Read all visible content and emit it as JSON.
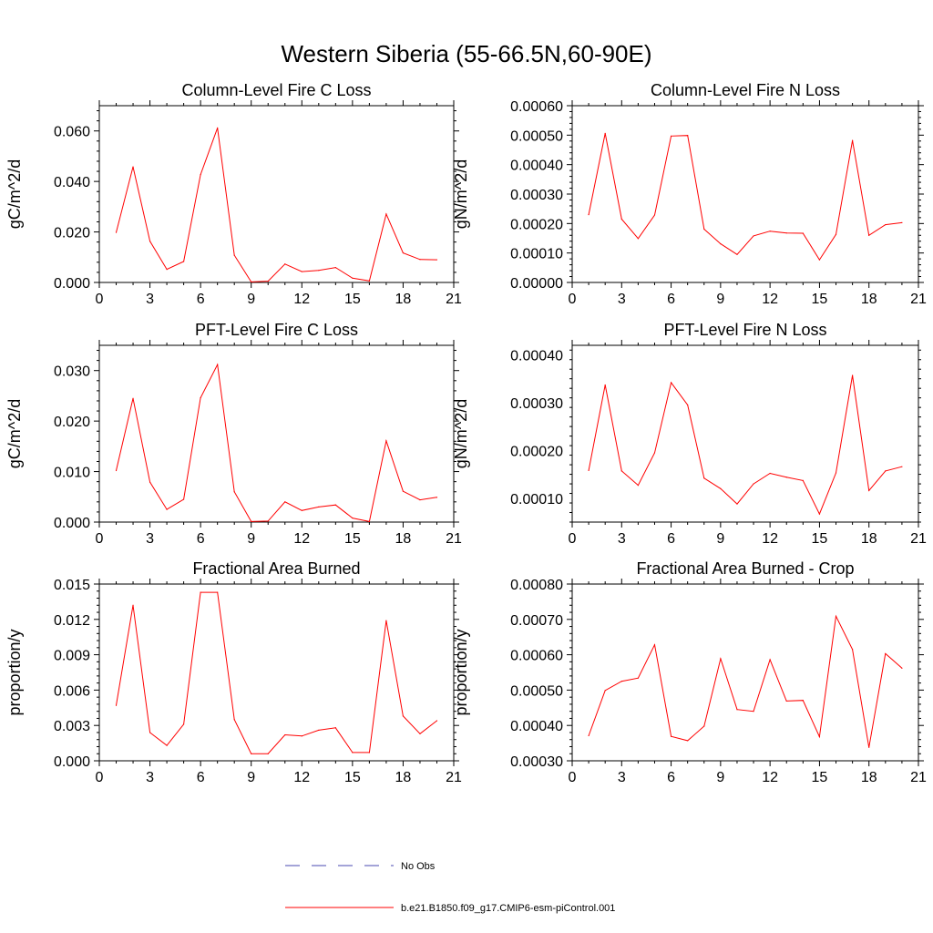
{
  "figure": {
    "title": "Western Siberia (55-66.5N,60-90E)",
    "colors": {
      "model": "#ff0000",
      "obs": "#4a4ab0",
      "axis": "#000000"
    },
    "legend": [
      {
        "label": "No Obs",
        "style": "dashed",
        "color": "#4a4ab0"
      },
      {
        "label": "b.e21.B1850.f09_g17.CMIP6-esm-piControl.001",
        "style": "solid",
        "color": "#ff0000"
      }
    ]
  },
  "chart_data": [
    {
      "type": "line",
      "title": "Column-Level Fire C Loss",
      "ylabel": "gC/m^2/d",
      "xlim": [
        0,
        21
      ],
      "xticks": [
        "0",
        "3",
        "6",
        "9",
        "12",
        "15",
        "18",
        "21"
      ],
      "ylim": [
        0,
        0.07
      ],
      "yticks": [
        "0.000",
        "0.020",
        "0.040",
        "0.060"
      ],
      "ytick_values": [
        0,
        0.02,
        0.04,
        0.06
      ],
      "ymax_top_line": true,
      "series": [
        {
          "name": "b.e21.B1850.f09_g17.CMIP6-esm-piControl.001",
          "x": [
            1,
            2,
            3,
            4,
            5,
            6,
            7,
            8,
            9,
            10,
            11,
            12,
            13,
            14,
            15,
            16,
            17,
            18,
            19,
            20
          ],
          "y": [
            0.0198,
            0.0458,
            0.0163,
            0.0052,
            0.0083,
            0.0427,
            0.0612,
            0.0108,
            0.0002,
            0.0005,
            0.0073,
            0.0043,
            0.0048,
            0.0059,
            0.0017,
            0.0006,
            0.0271,
            0.0117,
            0.0091,
            0.009
          ]
        }
      ]
    },
    {
      "type": "line",
      "title": "Column-Level Fire N Loss",
      "ylabel": "gN/m^2/d",
      "xlim": [
        0,
        21
      ],
      "xticks": [
        "0",
        "3",
        "6",
        "9",
        "12",
        "15",
        "18",
        "21"
      ],
      "ylim": [
        0,
        0.0006
      ],
      "yticks": [
        "0.00000",
        "0.00010",
        "0.00020",
        "0.00030",
        "0.00040",
        "0.00050",
        "0.00060"
      ],
      "ytick_values": [
        0,
        0.0001,
        0.0002,
        0.0003,
        0.0004,
        0.0005,
        0.0006
      ],
      "ymax_top_line": true,
      "series": [
        {
          "name": "b.e21.B1850.f09_g17.CMIP6-esm-piControl.001",
          "x": [
            1,
            2,
            3,
            4,
            5,
            6,
            7,
            8,
            9,
            10,
            11,
            12,
            13,
            14,
            15,
            16,
            17,
            18,
            19,
            20
          ],
          "y": [
            0.00023,
            0.000506,
            0.000215,
            0.000149,
            0.000229,
            0.000497,
            0.000499,
            0.000181,
            0.000131,
            9.5e-05,
            0.000158,
            0.000174,
            0.000168,
            0.000167,
            7.7e-05,
            0.000163,
            0.000482,
            0.00016,
            0.000196,
            0.000203
          ]
        }
      ]
    },
    {
      "type": "line",
      "title": "PFT-Level Fire C Loss",
      "ylabel": "gC/m^2/d",
      "xlim": [
        0,
        21
      ],
      "xticks": [
        "0",
        "3",
        "6",
        "9",
        "12",
        "15",
        "18",
        "21"
      ],
      "ylim": [
        0,
        0.035
      ],
      "yticks": [
        "0.000",
        "0.010",
        "0.020",
        "0.030"
      ],
      "ytick_values": [
        0,
        0.01,
        0.02,
        0.03
      ],
      "ymax_top_line": true,
      "series": [
        {
          "name": "b.e21.B1850.f09_g17.CMIP6-esm-piControl.001",
          "x": [
            1,
            2,
            3,
            4,
            5,
            6,
            7,
            8,
            9,
            10,
            11,
            12,
            13,
            14,
            15,
            16,
            17,
            18,
            19,
            20
          ],
          "y": [
            0.0102,
            0.0245,
            0.0079,
            0.0025,
            0.0045,
            0.0246,
            0.0312,
            0.006,
            0.0001,
            0.0002,
            0.004,
            0.0023,
            0.003,
            0.0034,
            0.0008,
            0.0001,
            0.0161,
            0.0061,
            0.0044,
            0.0049
          ]
        }
      ]
    },
    {
      "type": "line",
      "title": "PFT-Level Fire N Loss",
      "ylabel": "gN/m^2/d",
      "xlim": [
        0,
        21
      ],
      "xticks": [
        "0",
        "3",
        "6",
        "9",
        "12",
        "15",
        "18",
        "21"
      ],
      "ylim": [
        5e-05,
        0.00042
      ],
      "yticks": [
        "0.00010",
        "0.00020",
        "0.00030",
        "0.00040"
      ],
      "ytick_values": [
        0.0001,
        0.0002,
        0.0003,
        0.0004
      ],
      "ymax_top_line": true,
      "series": [
        {
          "name": "b.e21.B1850.f09_g17.CMIP6-esm-piControl.001",
          "x": [
            1,
            2,
            3,
            4,
            5,
            6,
            7,
            8,
            9,
            10,
            11,
            12,
            13,
            14,
            15,
            16,
            17,
            18,
            19,
            20
          ],
          "y": [
            0.000158,
            0.000337,
            0.000157,
            0.000127,
            0.000195,
            0.000342,
            0.000295,
            0.000142,
            0.00012,
            8.8e-05,
            0.00013,
            0.000152,
            0.000144,
            0.000137,
            6.7e-05,
            0.000153,
            0.000357,
            0.000116,
            0.000157,
            0.000166
          ]
        }
      ]
    },
    {
      "type": "line",
      "title": "Fractional Area Burned",
      "ylabel": "proportion/y",
      "xlim": [
        0,
        21
      ],
      "xticks": [
        "0",
        "3",
        "6",
        "9",
        "12",
        "15",
        "18",
        "21"
      ],
      "ylim": [
        0,
        0.015
      ],
      "yticks": [
        "0.000",
        "0.003",
        "0.006",
        "0.009",
        "0.012",
        "0.015"
      ],
      "ytick_values": [
        0,
        0.003,
        0.006,
        0.009,
        0.012,
        0.015
      ],
      "ymax_top_line": true,
      "series": [
        {
          "name": "b.e21.B1850.f09_g17.CMIP6-esm-piControl.001",
          "x": [
            1,
            2,
            3,
            4,
            5,
            6,
            7,
            8,
            9,
            10,
            11,
            12,
            13,
            14,
            15,
            16,
            17,
            18,
            19,
            20
          ],
          "y": [
            0.0047,
            0.0132,
            0.0024,
            0.0013,
            0.0031,
            0.0143,
            0.0143,
            0.0035,
            0.0006,
            0.0006,
            0.0022,
            0.0021,
            0.0026,
            0.0028,
            0.0007,
            0.0007,
            0.0119,
            0.0038,
            0.0023,
            0.0034
          ]
        }
      ]
    },
    {
      "type": "line",
      "title": "Fractional Area Burned - Crop",
      "ylabel": "proportion/y",
      "xlim": [
        0,
        21
      ],
      "xticks": [
        "0",
        "3",
        "6",
        "9",
        "12",
        "15",
        "18",
        "21"
      ],
      "ylim": [
        0.0003,
        0.0008
      ],
      "yticks": [
        "0.00030",
        "0.00040",
        "0.00050",
        "0.00060",
        "0.00070",
        "0.00080"
      ],
      "ytick_values": [
        0.0003,
        0.0004,
        0.0005,
        0.0006,
        0.0007,
        0.0008
      ],
      "ymax_top_line": true,
      "series": [
        {
          "name": "b.e21.B1850.f09_g17.CMIP6-esm-piControl.001",
          "x": [
            1,
            2,
            3,
            4,
            5,
            6,
            7,
            8,
            9,
            10,
            11,
            12,
            13,
            14,
            15,
            16,
            17,
            18,
            19,
            20
          ],
          "y": [
            0.000371,
            0.000499,
            0.000525,
            0.000534,
            0.000628,
            0.000369,
            0.000357,
            0.000398,
            0.000589,
            0.000445,
            0.00044,
            0.000586,
            0.000469,
            0.000471,
            0.000368,
            0.000709,
            0.000615,
            0.000338,
            0.000603,
            0.000562
          ]
        }
      ]
    }
  ]
}
